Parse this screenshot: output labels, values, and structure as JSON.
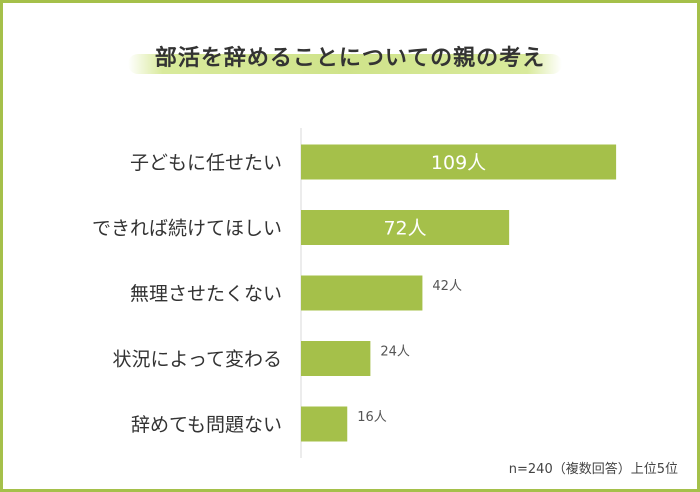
{
  "title": "部活を辞めることについての親の考え",
  "footnote": "n=240（複数回答）上位5位",
  "colors": {
    "frame": "#a5c04a",
    "bar": "#a5c04a",
    "title_band": "#cfe38a",
    "text": "#333333",
    "inside_label": "#ffffff",
    "outside_label": "#555555",
    "axis": "#d8d8d8"
  },
  "chart_data": {
    "type": "bar",
    "orientation": "horizontal",
    "title": "部活を辞めることについての親の考え",
    "categories": [
      "子どもに任せたい",
      "できれば続けてほしい",
      "無理させたくない",
      "状況によって変わる",
      "辞めても問題ない"
    ],
    "values": [
      109,
      72,
      42,
      24,
      16
    ],
    "value_labels": [
      "109人",
      "72人",
      "42人",
      "24人",
      "16人"
    ],
    "unit": "人",
    "xlim": [
      0,
      110
    ],
    "grid": false,
    "legend": "none"
  }
}
